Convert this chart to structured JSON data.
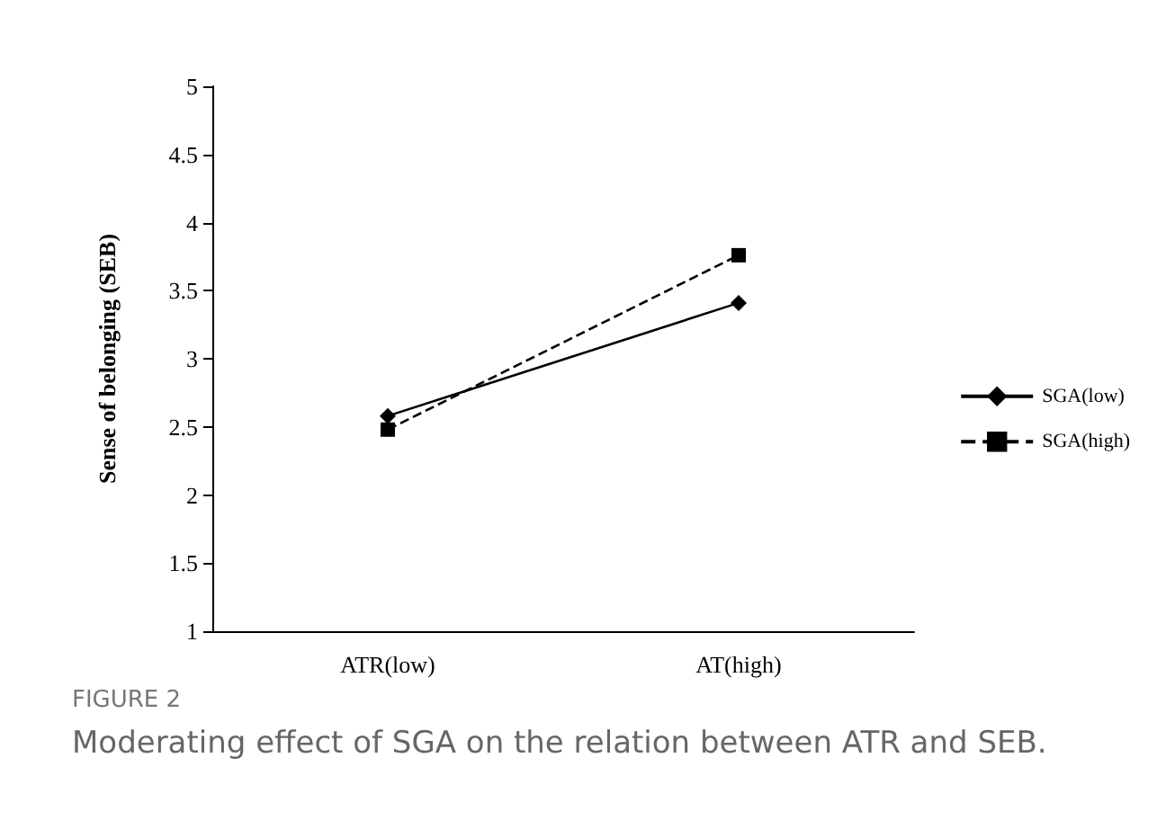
{
  "chart_data": {
    "type": "line",
    "ylabel": "Sense of belonging (SEB)",
    "categories": [
      "ATR(low)",
      "AT(high)"
    ],
    "series": [
      {
        "name": "SGA(low)",
        "color": "#000000",
        "values": [
          2.58,
          3.41
        ],
        "marker": "diamond",
        "line_style": "solid"
      },
      {
        "name": "SGA(high)",
        "color": "#000000",
        "values": [
          2.48,
          3.76
        ],
        "marker": "square",
        "line_style": "dashed"
      }
    ],
    "ylim": [
      1,
      5
    ],
    "yticks": [
      1,
      1.5,
      2,
      2.5,
      3,
      3.5,
      4,
      4.5,
      5
    ],
    "grid": false,
    "legend": "right",
    "annotations": [
      "FIGURE 2",
      "Moderating effect of SGA on the relation between ATR and SEB."
    ]
  }
}
